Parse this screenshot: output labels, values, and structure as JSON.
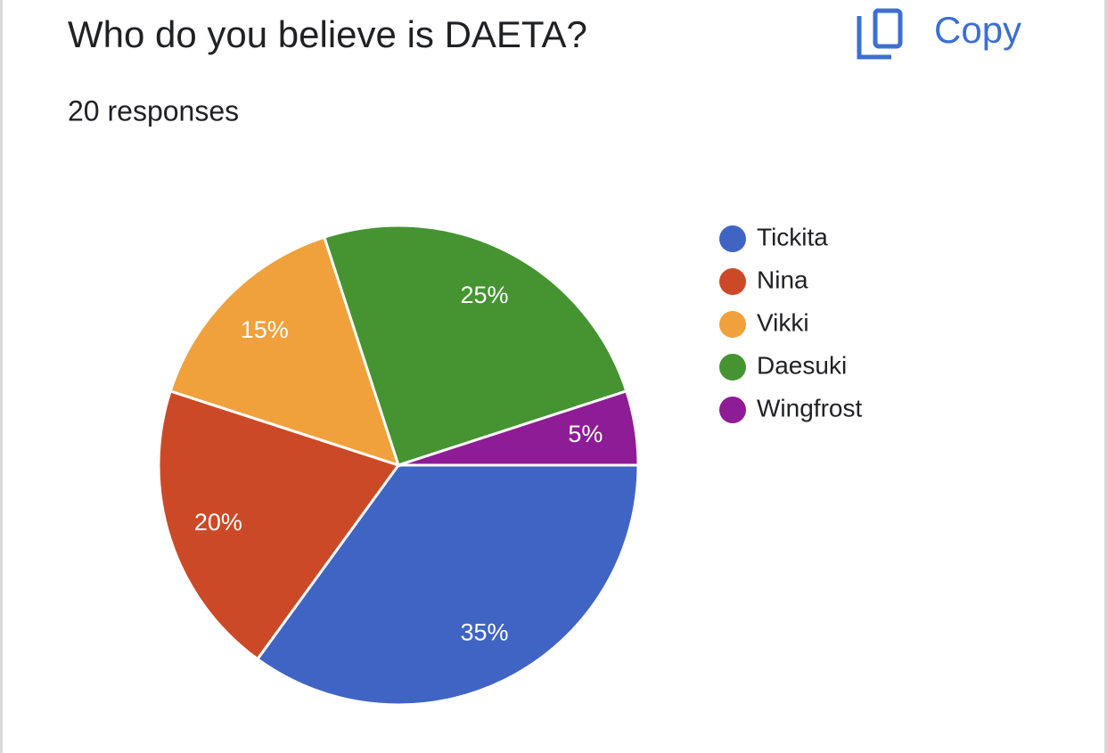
{
  "toolbar": {
    "copy": "Copy"
  },
  "chart_data": {
    "type": "pie",
    "title": "Who do you believe is DAETA?",
    "subtitle": "20 responses",
    "categories": [
      "Tickita",
      "Nina",
      "Vikki",
      "Daesuki",
      "Wingfrost"
    ],
    "values": [
      35,
      20,
      15,
      25,
      5
    ],
    "value_labels": [
      "35%",
      "20%",
      "15%",
      "25%",
      "5%"
    ],
    "colors": [
      "#3f64c4",
      "#cc4927",
      "#f0a13c",
      "#459431",
      "#8e1c96"
    ],
    "legend": "right"
  }
}
